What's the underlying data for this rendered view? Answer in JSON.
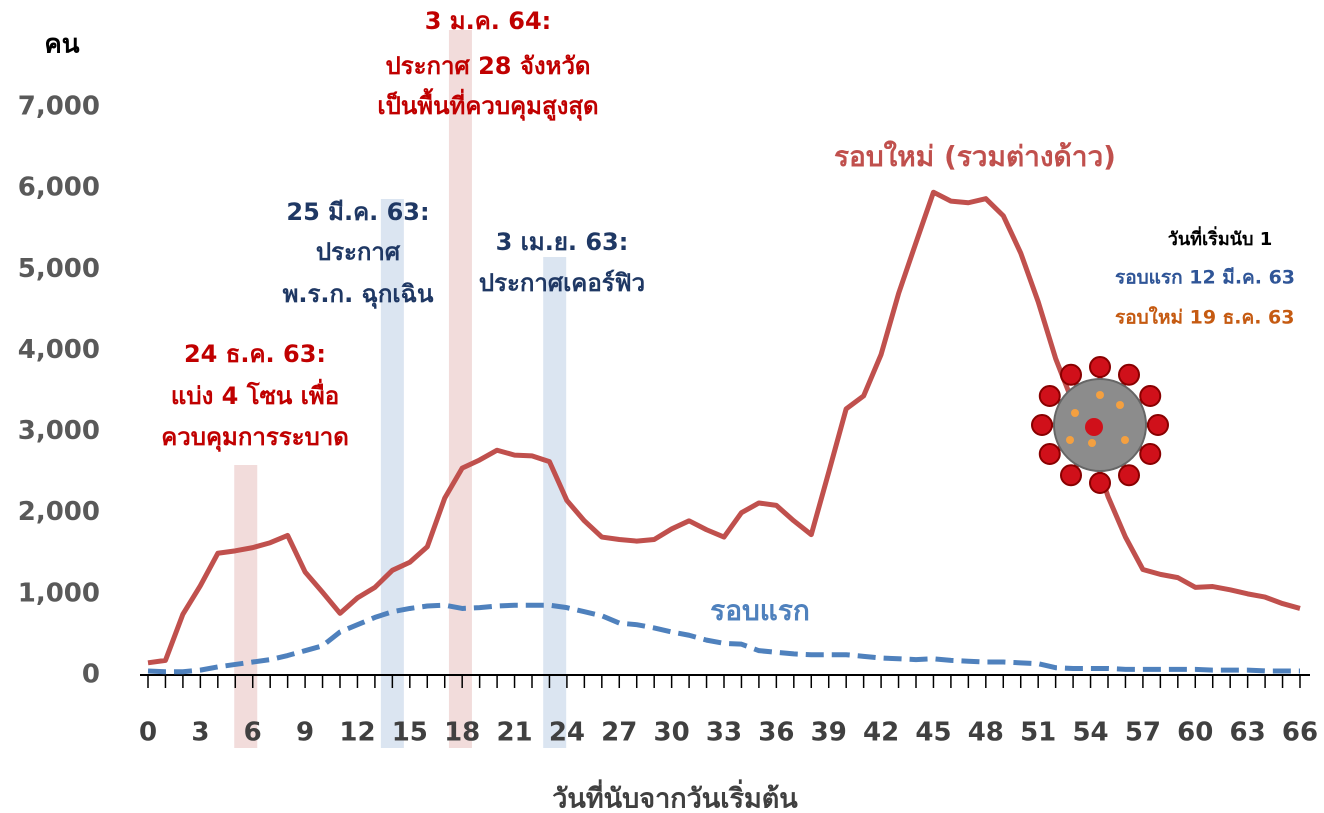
{
  "chart_data": {
    "type": "line",
    "y_label": "คน",
    "x_label": "วันที่นับจากวันเริ่มต้น",
    "x": [
      0,
      1,
      2,
      3,
      4,
      5,
      6,
      7,
      8,
      9,
      10,
      11,
      12,
      13,
      14,
      15,
      16,
      17,
      18,
      19,
      20,
      21,
      22,
      23,
      24,
      25,
      26,
      27,
      28,
      29,
      30,
      31,
      32,
      33,
      34,
      35,
      36,
      37,
      38,
      39,
      40,
      41,
      42,
      43,
      44,
      45,
      46,
      47,
      48,
      49,
      50,
      51,
      52,
      53,
      54,
      55,
      56,
      57,
      58,
      59,
      60,
      61,
      62,
      63,
      64,
      65,
      66
    ],
    "xlim": [
      0,
      66
    ],
    "xticks": [
      0,
      3,
      6,
      9,
      12,
      15,
      18,
      21,
      24,
      27,
      30,
      33,
      36,
      39,
      42,
      45,
      48,
      51,
      54,
      57,
      60,
      63,
      66
    ],
    "ylim": [
      0,
      7000
    ],
    "yticks": [
      0,
      {
        "value": 1000,
        "label": "1,000"
      },
      {
        "value": 2000,
        "label": "2,000"
      },
      {
        "value": 3000,
        "label": "3,000"
      },
      {
        "value": 4000,
        "label": "4,000"
      },
      {
        "value": 5000,
        "label": "5,000"
      },
      {
        "value": 6000,
        "label": "6,000"
      },
      {
        "value": 7000,
        "label": "7,000"
      }
    ],
    "series": [
      {
        "name": "รอบใหม่ (รวมต่างด้าว)",
        "color": "#c0504d",
        "dashed": false,
        "values": [
          150,
          180,
          750,
          1100,
          1500,
          1530,
          1570,
          1630,
          1720,
          1270,
          1020,
          760,
          950,
          1080,
          1290,
          1390,
          1580,
          2180,
          2550,
          2650,
          2770,
          2710,
          2700,
          2630,
          2150,
          1900,
          1700,
          1670,
          1650,
          1670,
          1800,
          1900,
          1790,
          1700,
          2000,
          2120,
          2090,
          1900,
          1730,
          2500,
          3280,
          3440,
          3950,
          4700,
          5330,
          5950,
          5840,
          5820,
          5870,
          5660,
          5200,
          4600,
          3900,
          3350,
          2850,
          2200,
          1700,
          1300,
          1240,
          1200,
          1080,
          1090,
          1050,
          1000,
          960,
          880,
          820
        ]
      },
      {
        "name": "รอบแรก",
        "color": "#4f81bd",
        "dashed": true,
        "values": [
          50,
          40,
          40,
          60,
          100,
          130,
          160,
          190,
          240,
          300,
          360,
          530,
          620,
          710,
          780,
          820,
          850,
          860,
          820,
          830,
          850,
          860,
          860,
          860,
          830,
          780,
          730,
          640,
          620,
          580,
          530,
          490,
          430,
          390,
          380,
          300,
          280,
          260,
          250,
          250,
          250,
          230,
          210,
          200,
          190,
          200,
          180,
          170,
          160,
          160,
          150,
          140,
          90,
          80,
          80,
          80,
          70,
          70,
          70,
          70,
          70,
          60,
          60,
          60,
          50,
          50,
          50
        ]
      }
    ],
    "events": [
      {
        "day": 5.6,
        "band_color": "#f2dcdb",
        "text_color": "#c00000",
        "lines": [
          "24 ธ.ค. 63:",
          "แบ่ง 4 โซน เพื่อ",
          "ควบคุมการระบาด"
        ]
      },
      {
        "day": 14,
        "band_color": "#dbe5f1",
        "text_color": "#1f3864",
        "lines": [
          "25 มี.ค. 63:",
          "ประกาศ",
          "พ.ร.ก. ฉุกเฉิน"
        ]
      },
      {
        "day": 17.9,
        "band_color": "#f2dcdb",
        "text_color": "#c00000",
        "lines": [
          "3 ม.ค. 64:",
          "ประกาศ 28 จังหวัด",
          "เป็นพื้นที่ควบคุมสูงสุด"
        ]
      },
      {
        "day": 23.3,
        "band_color": "#dbe5f1",
        "text_color": "#1f3864",
        "lines": [
          "3 เม.ย. 63:",
          "ประกาศเคอร์ฟิว"
        ]
      }
    ],
    "note": {
      "title": "วันที่เริ่มนับ 1",
      "first": "รอบแรก 12 มี.ค. 63",
      "second": "รอบใหม่ 19 ธ.ค. 63"
    }
  }
}
